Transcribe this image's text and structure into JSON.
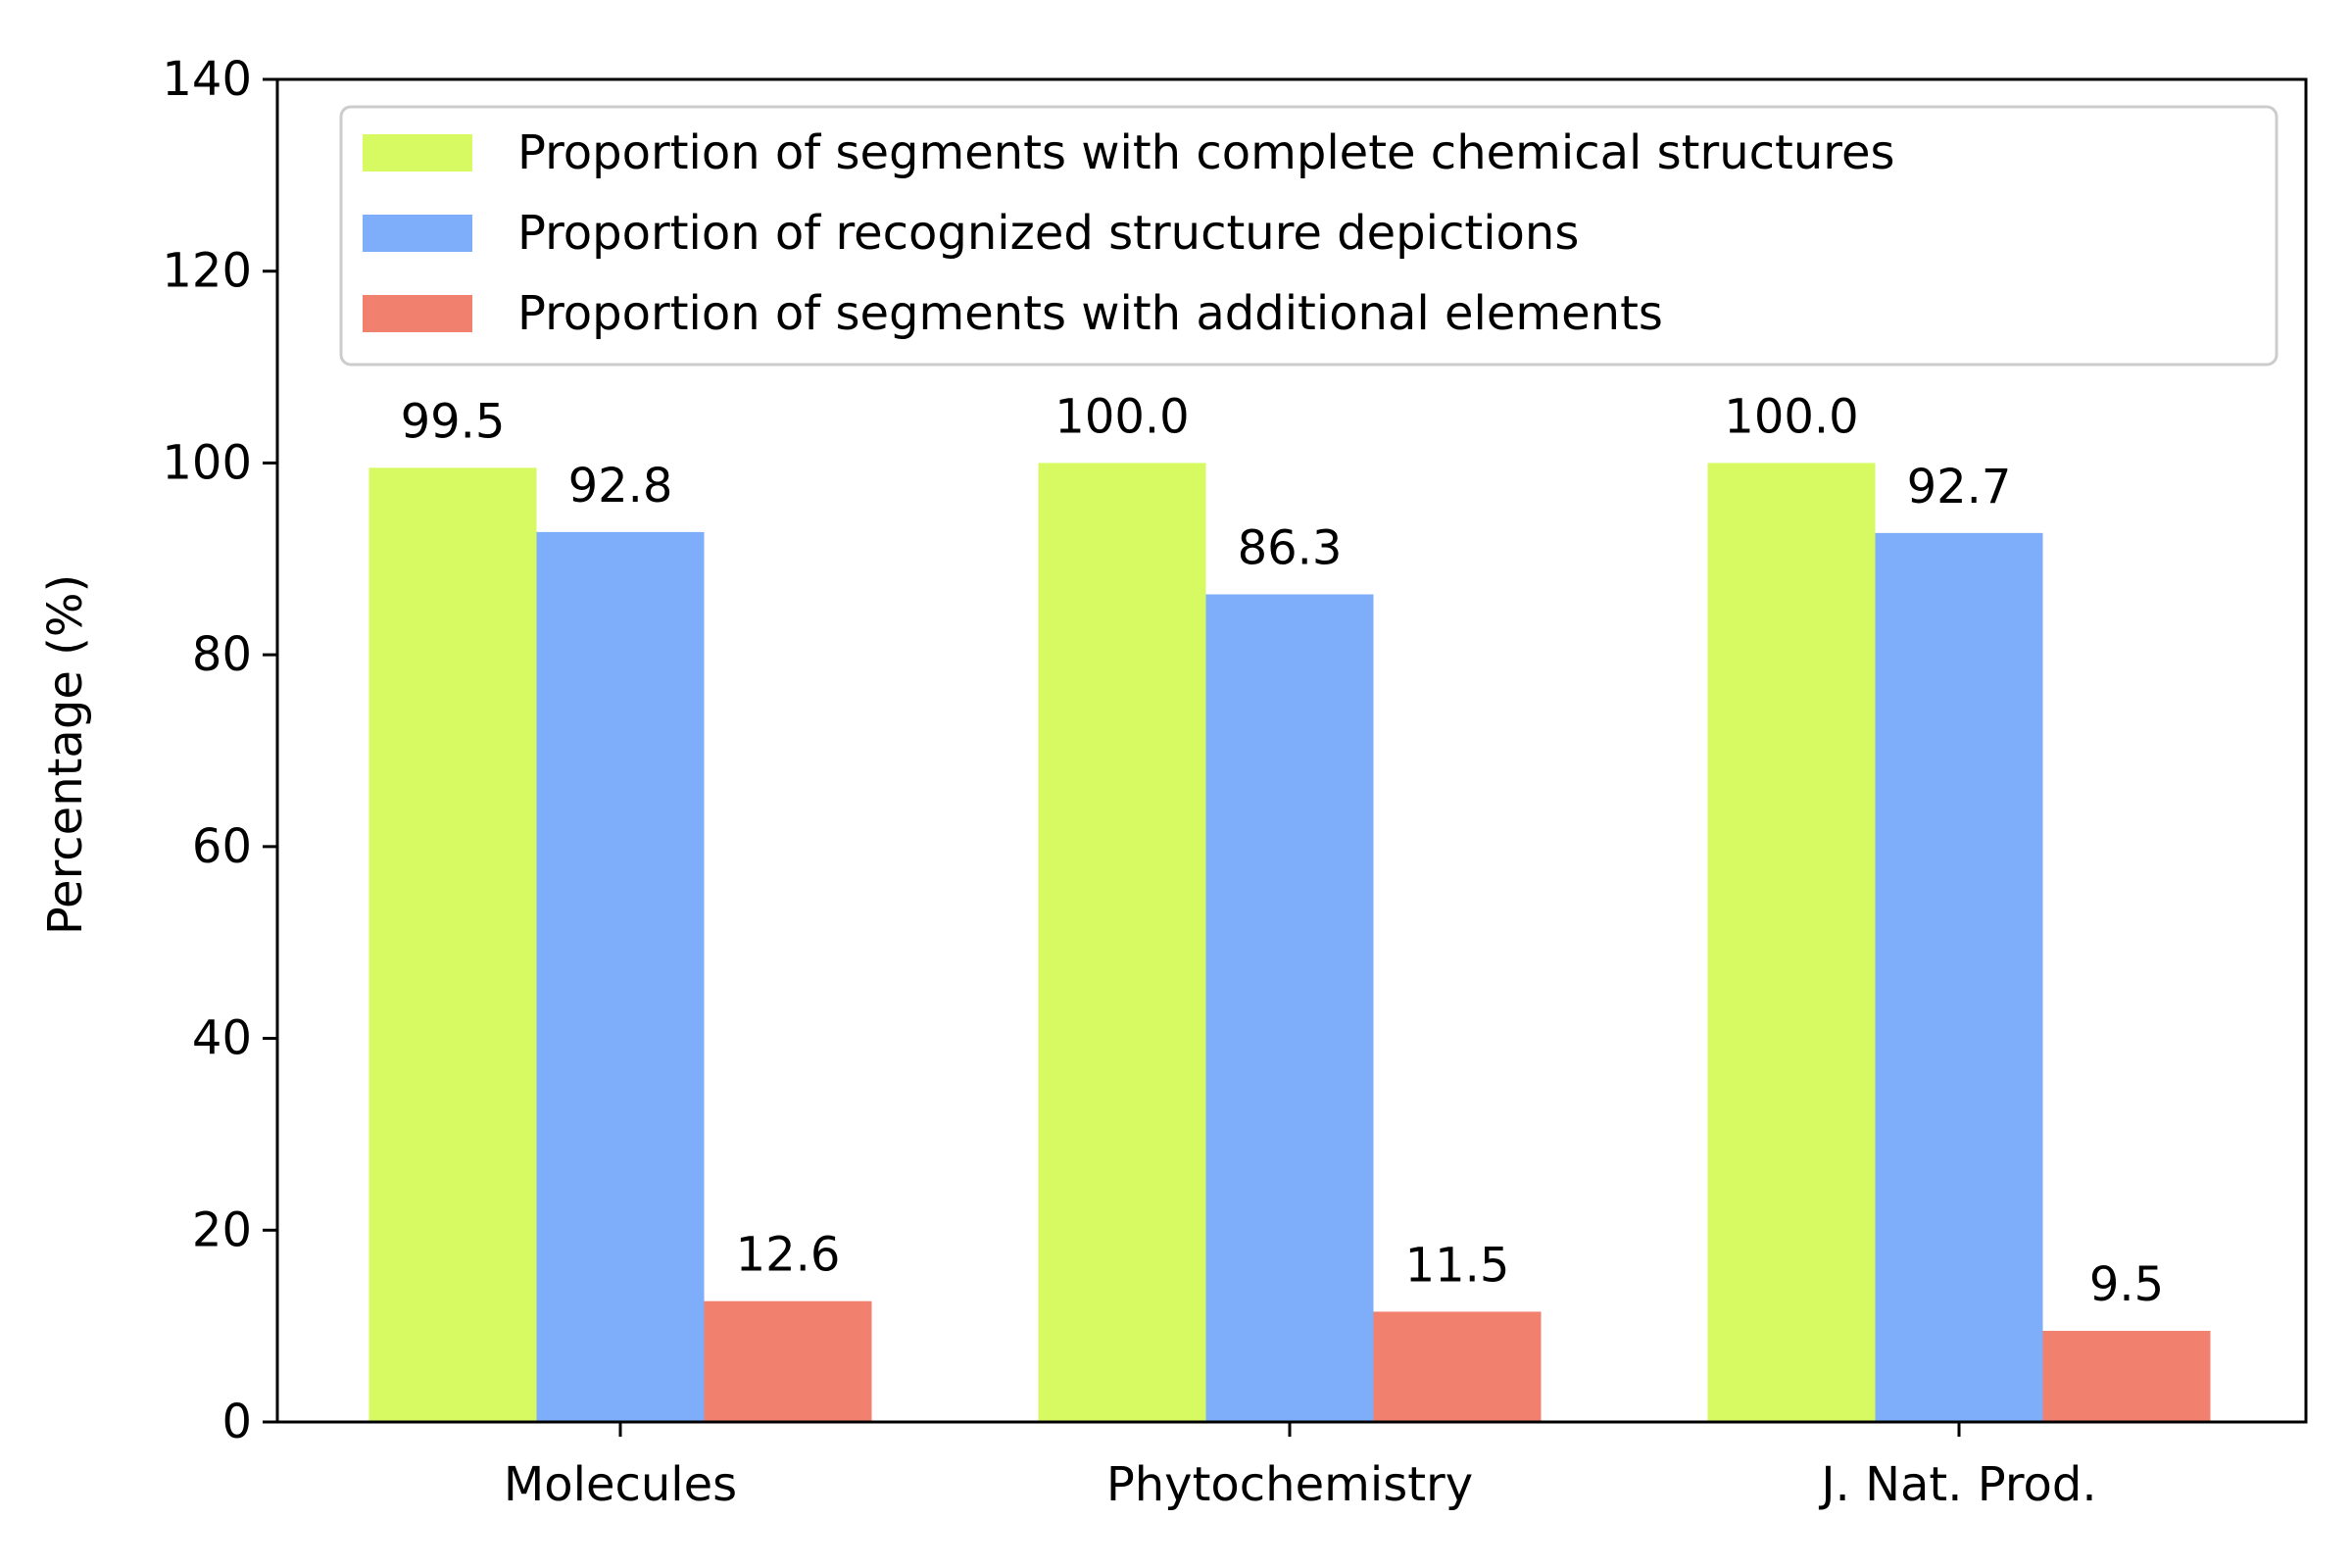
{
  "chart_data": {
    "type": "bar",
    "title": "",
    "xlabel": "",
    "ylabel": "Percentage (%)",
    "ylim": [
      0,
      140
    ],
    "yticks": [
      0,
      20,
      40,
      60,
      80,
      100,
      120,
      140
    ],
    "categories": [
      "Molecules",
      "Phytochemistry",
      "J. Nat. Prod."
    ],
    "series": [
      {
        "name": "Proportion of segments with complete chemical structures",
        "color": "#d7f961",
        "values": [
          99.5,
          100.0,
          100.0
        ],
        "labels": [
          "99.5",
          "100.0",
          "100.0"
        ]
      },
      {
        "name": "Proportion of recognized structure depictions",
        "color": "#7eaef9",
        "values": [
          92.8,
          86.3,
          92.7
        ],
        "labels": [
          "92.8",
          "86.3",
          "92.7"
        ]
      },
      {
        "name": "Proportion of segments with additional elements",
        "color": "#f2806e",
        "values": [
          12.6,
          11.5,
          9.5
        ],
        "labels": [
          "12.6",
          "11.5",
          "9.5"
        ]
      }
    ],
    "legend_position": "top",
    "grid": false
  }
}
